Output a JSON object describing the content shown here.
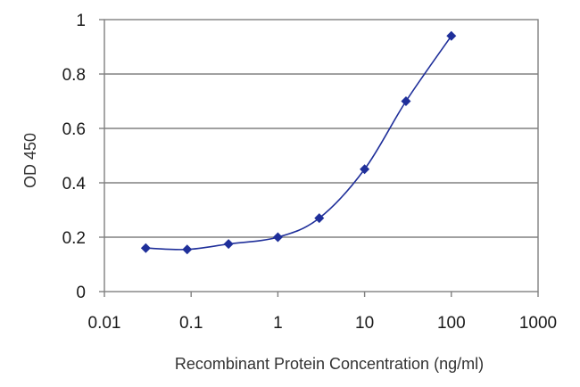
{
  "chart_data": {
    "type": "scatter",
    "title": "",
    "xlabel": "Recombinant Protein Concentration (ng/ml)",
    "ylabel": "OD 450",
    "xscale": "log",
    "xlim": [
      0.01,
      1000
    ],
    "ylim": [
      0,
      1
    ],
    "xticks": [
      0.01,
      0.1,
      1,
      10,
      100,
      1000
    ],
    "xtick_labels": [
      "0.01",
      "0.1",
      "1",
      "10",
      "100",
      "1000"
    ],
    "yticks": [
      0,
      0.2,
      0.4,
      0.6,
      0.8,
      1
    ],
    "ytick_labels": [
      "0",
      "0.2",
      "0.4",
      "0.6",
      "0.8",
      "1"
    ],
    "grid": "horizontal",
    "legend": "none",
    "series": [
      {
        "x": [
          0.03,
          0.09,
          0.27,
          1,
          3,
          10,
          30,
          100
        ],
        "y": [
          0.16,
          0.155,
          0.175,
          0.2,
          0.27,
          0.45,
          0.7,
          0.94
        ],
        "marker": "diamond",
        "fit_curve": true,
        "color": "#1f2f9a"
      }
    ],
    "colors": {
      "series": "#1f2f9a",
      "gridline": "#808080",
      "axis": "#808080",
      "text": "#1a1a1a"
    }
  }
}
